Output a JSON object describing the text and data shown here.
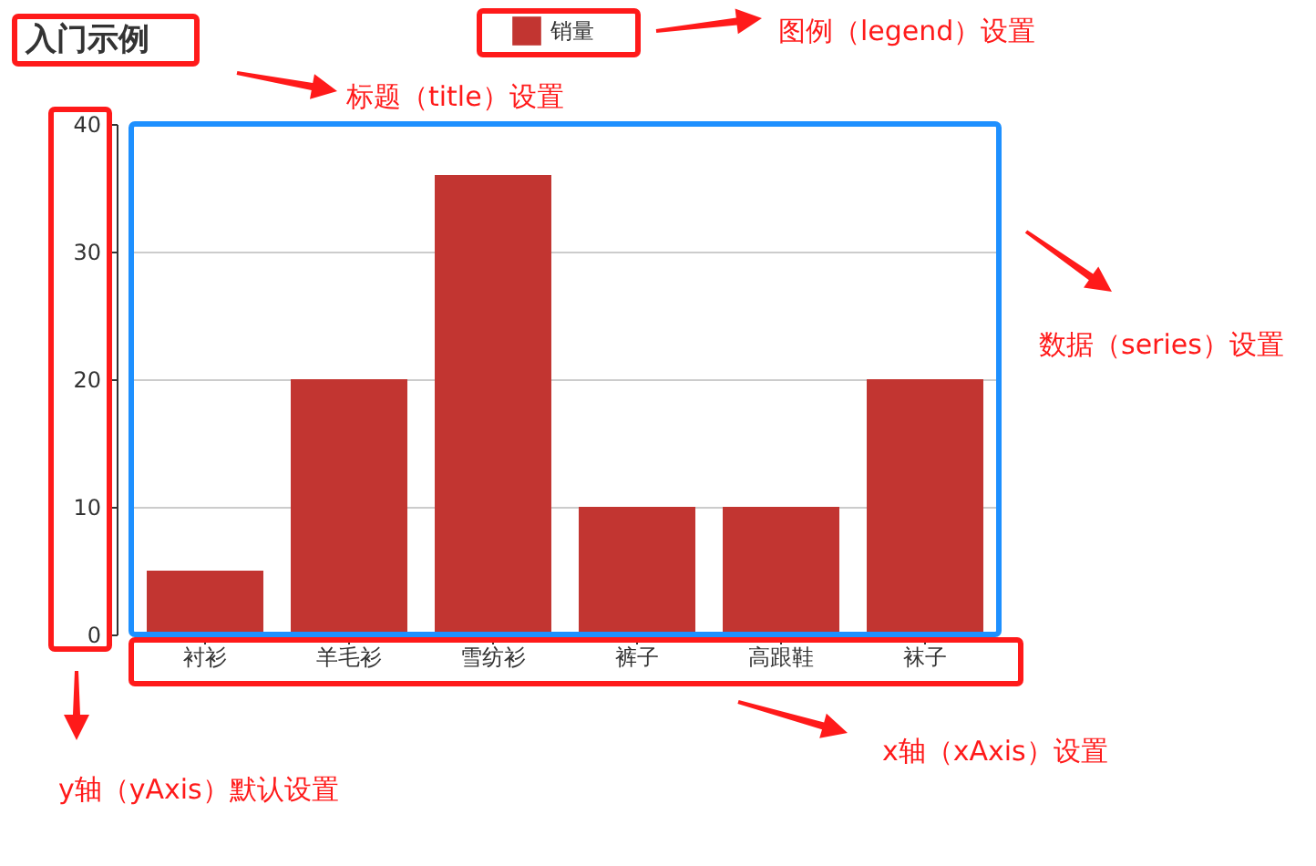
{
  "chart_data": {
    "type": "bar",
    "title": "入门示例",
    "categories": [
      "衬衫",
      "羊毛衫",
      "雪纺衫",
      "裤子",
      "高跟鞋",
      "袜子"
    ],
    "series": [
      {
        "name": "销量",
        "color": "#c23531",
        "values": [
          5,
          20,
          36,
          10,
          10,
          20
        ]
      }
    ],
    "ylim": [
      0,
      40
    ],
    "yticks": [
      0,
      10,
      20,
      30,
      40
    ],
    "grid": "y",
    "legend": "top",
    "annotations": [
      "标题（title）设置",
      "图例（legend）设置",
      "数据（series）设置",
      "x轴（xAxis）设置",
      "y轴（yAxis）默认设置"
    ]
  }
}
